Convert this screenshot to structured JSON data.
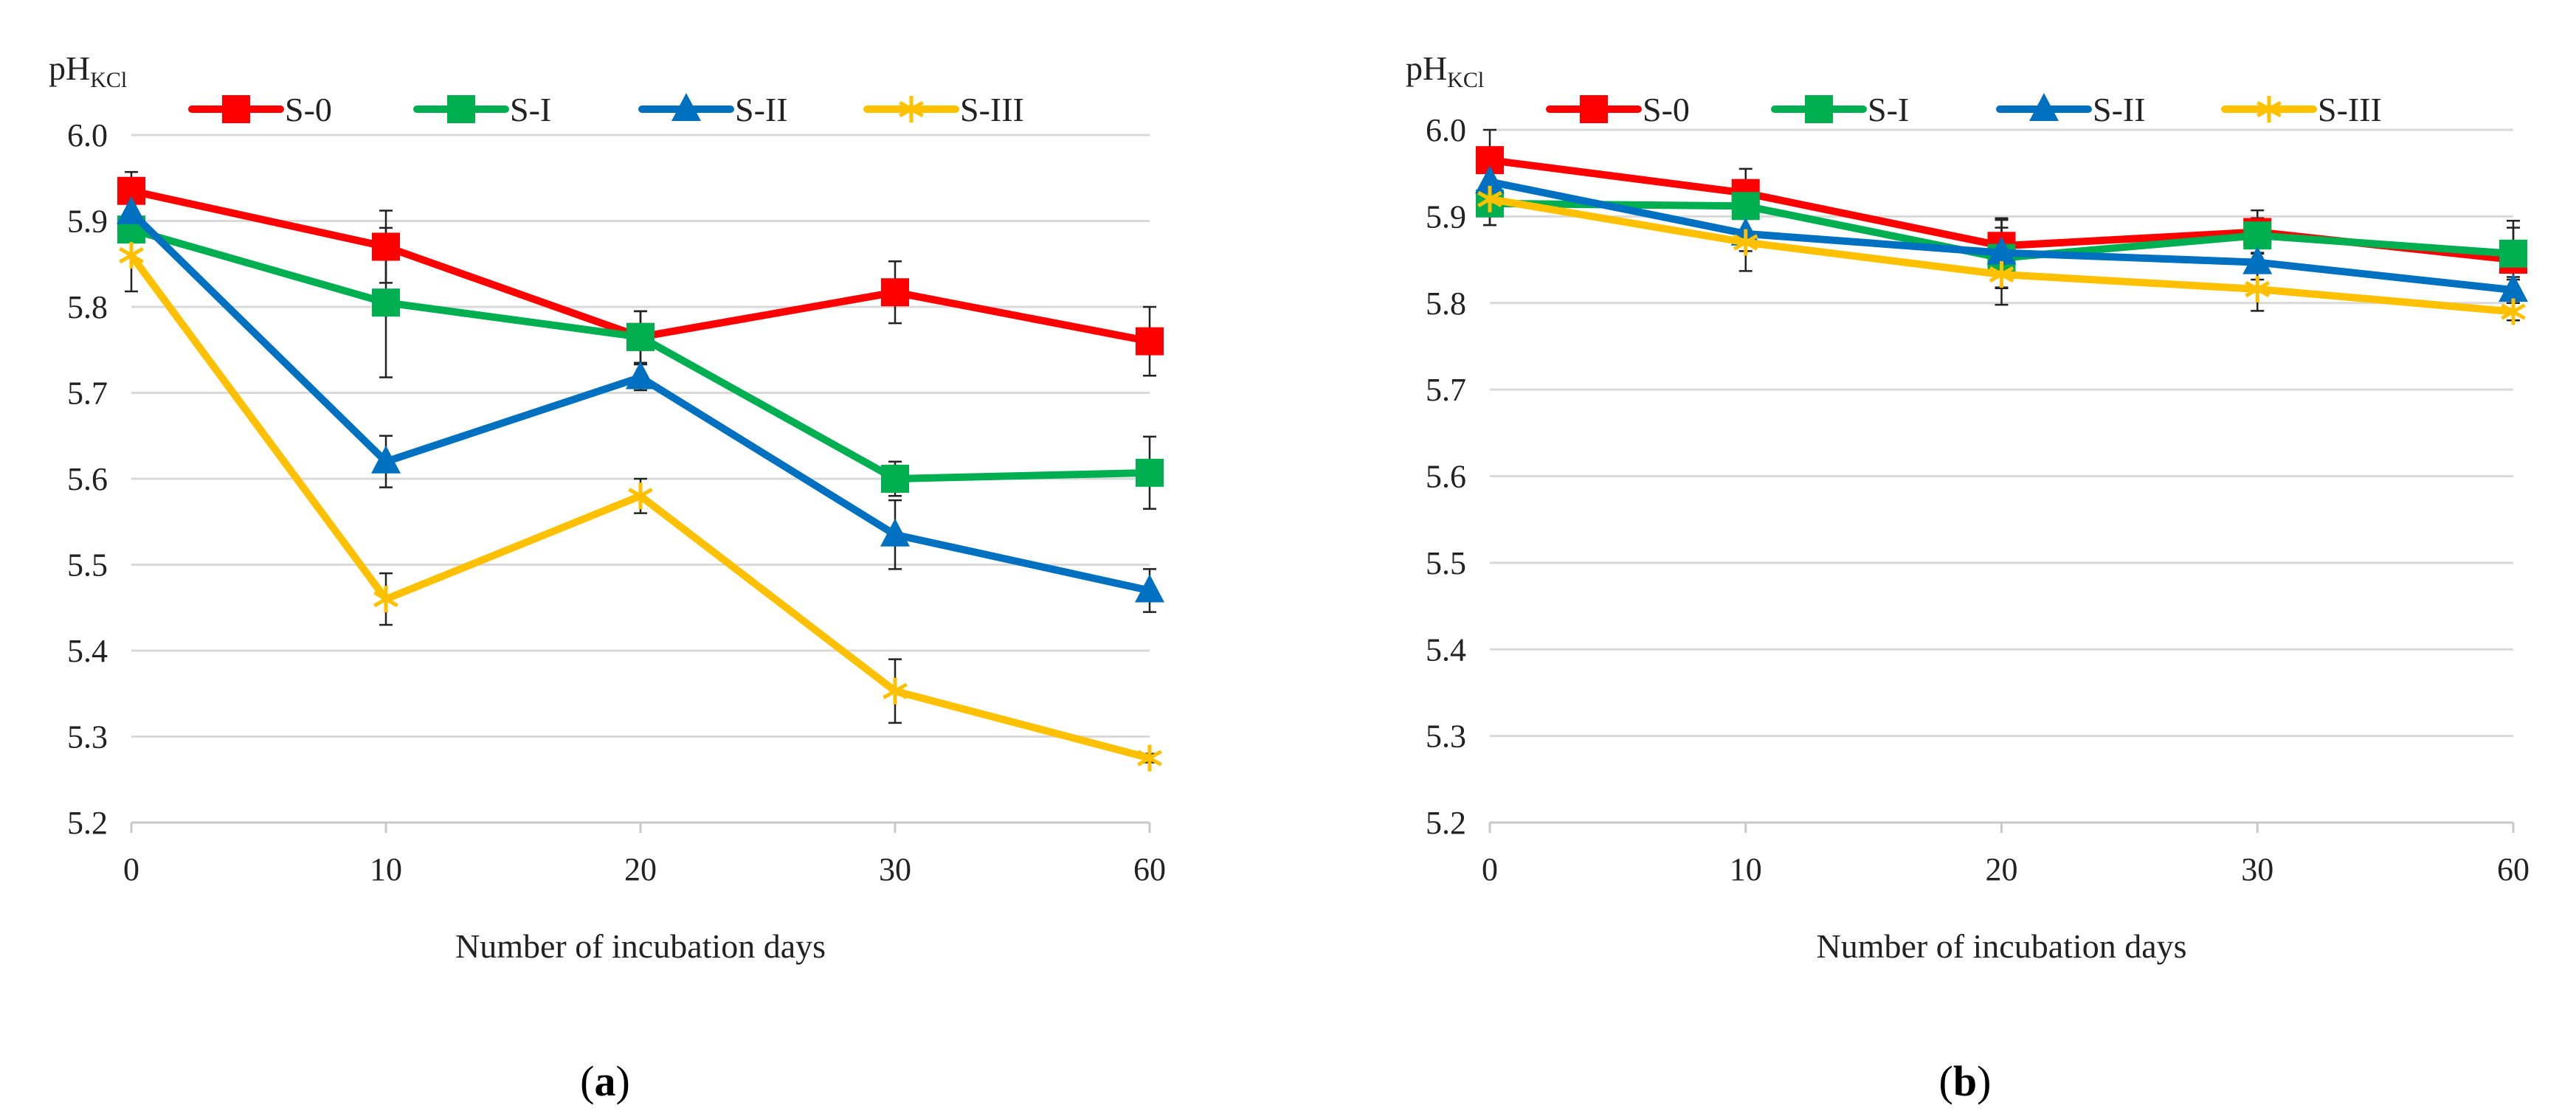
{
  "chart_data": [
    {
      "type": "line",
      "panel_label": "a",
      "ylabel": "pH",
      "ylabel_sub": "KCl",
      "xlabel": "Number of incubation days",
      "categories": [
        "0",
        "10",
        "20",
        "30",
        "60"
      ],
      "ylim": [
        5.2,
        6.0
      ],
      "yticks": [
        "5.2",
        "5.3",
        "5.4",
        "5.5",
        "5.6",
        "5.7",
        "5.8",
        "5.9",
        "6.0"
      ],
      "grid": true,
      "legend_position": "top",
      "series": [
        {
          "name": "S-0",
          "color": "#ff0000",
          "marker": "square",
          "values": [
            5.935,
            5.87,
            5.765,
            5.817,
            5.76
          ],
          "errors": [
            0.022,
            0.042,
            0.03,
            0.036,
            0.04
          ]
        },
        {
          "name": "S-I",
          "color": "#00b050",
          "marker": "square",
          "values": [
            5.89,
            5.805,
            5.765,
            5.6,
            5.607
          ],
          "errors": [
            0.01,
            0.087,
            0.03,
            0.02,
            0.042
          ]
        },
        {
          "name": "S-II",
          "color": "#0070c0",
          "marker": "triangle",
          "values": [
            5.91,
            5.62,
            5.718,
            5.535,
            5.47
          ],
          "errors": [
            0.025,
            0.03,
            0.015,
            0.04,
            0.025
          ]
        },
        {
          "name": "S-III",
          "color": "#ffc000",
          "marker": "star",
          "values": [
            5.86,
            5.46,
            5.58,
            5.353,
            5.275
          ],
          "errors": [
            0.042,
            0.03,
            0.02,
            0.037,
            0.005
          ]
        }
      ]
    },
    {
      "type": "line",
      "panel_label": "b",
      "ylabel": "pH",
      "ylabel_sub": "KCl",
      "xlabel": "Number of incubation days",
      "categories": [
        "0",
        "10",
        "20",
        "30",
        "60"
      ],
      "ylim": [
        5.2,
        6.0
      ],
      "yticks": [
        "5.2",
        "5.3",
        "5.4",
        "5.5",
        "5.6",
        "5.7",
        "5.8",
        "5.9",
        "6.0"
      ],
      "grid": true,
      "legend_position": "top",
      "series": [
        {
          "name": "S-0",
          "color": "#ff0000",
          "marker": "square",
          "values": [
            5.965,
            5.927,
            5.866,
            5.882,
            5.85
          ],
          "errors": [
            0.035,
            0.028,
            0.03,
            0.025,
            0.045
          ]
        },
        {
          "name": "S-I",
          "color": "#00b050",
          "marker": "square",
          "values": [
            5.915,
            5.912,
            5.852,
            5.878,
            5.857
          ],
          "errors": [
            0.025,
            0.015,
            0.035,
            0.02,
            0.03
          ]
        },
        {
          "name": "S-II",
          "color": "#0070c0",
          "marker": "triangle",
          "values": [
            5.94,
            5.88,
            5.858,
            5.847,
            5.815
          ],
          "errors": [
            0.02,
            0.02,
            0.04,
            0.02,
            0.015
          ]
        },
        {
          "name": "S-III",
          "color": "#ffc000",
          "marker": "star",
          "values": [
            5.92,
            5.87,
            5.833,
            5.816,
            5.79
          ],
          "errors": [
            0.03,
            0.033,
            0.035,
            0.025,
            0.01
          ]
        }
      ]
    }
  ]
}
